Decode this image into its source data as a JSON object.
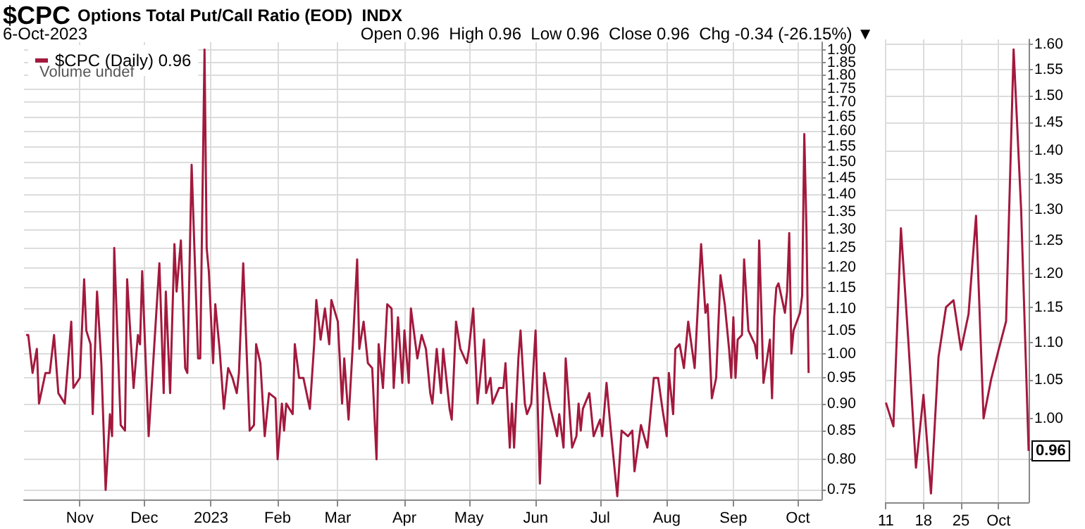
{
  "chart_data": [
    {
      "type": "line",
      "title": "$CPC",
      "subtitle": "Options Total Put/Call Ratio (EOD)  INDX",
      "annotations": [
        "6-Oct-2023",
        "Open 0.96  High 0.96  Low 0.96  Close 0.96  Chg -0.34 (-26.15%) ▼",
        "Volume undef"
      ],
      "x": [
        "2022-10-07",
        "2022-10-08",
        "2022-10-10",
        "2022-10-12",
        "2022-10-13",
        "2022-10-16",
        "2022-10-18",
        "2022-10-20",
        "2022-10-22",
        "2022-10-25",
        "2022-10-28",
        "2022-10-29",
        "2022-11-01",
        "2022-11-03",
        "2022-11-04",
        "2022-11-06",
        "2022-11-07",
        "2022-11-09",
        "2022-11-11",
        "2022-11-13",
        "2022-11-15",
        "2022-11-16",
        "2022-11-17",
        "2022-11-20",
        "2022-11-22",
        "2022-11-23",
        "2022-11-26",
        "2022-11-28",
        "2022-11-29",
        "2022-11-30",
        "2022-12-03",
        "2022-12-08",
        "2022-12-10",
        "2022-12-11",
        "2022-12-13",
        "2022-12-15",
        "2022-12-16",
        "2022-12-18",
        "2022-12-20",
        "2022-12-21",
        "2022-12-23",
        "2022-12-26",
        "2022-12-27",
        "2022-12-29",
        "2022-12-30",
        "2022-12-31",
        "2023-01-02",
        "2023-01-03",
        "2023-01-05",
        "2023-01-07",
        "2023-01-09",
        "2023-01-11",
        "2023-01-13",
        "2023-01-14",
        "2023-01-16",
        "2023-01-19",
        "2023-01-21",
        "2023-01-22",
        "2023-01-24",
        "2023-01-26",
        "2023-01-28",
        "2023-01-31",
        "2023-02-01",
        "2023-02-03",
        "2023-02-04",
        "2023-02-05",
        "2023-02-08",
        "2023-02-09",
        "2023-02-11",
        "2023-02-13",
        "2023-02-16",
        "2023-02-18",
        "2023-02-19",
        "2023-02-21",
        "2023-02-23",
        "2023-02-25",
        "2023-02-26",
        "2023-03-01",
        "2023-03-03",
        "2023-03-04",
        "2023-03-06",
        "2023-03-08",
        "2023-03-10",
        "2023-03-11",
        "2023-03-13",
        "2023-03-15",
        "2023-03-17",
        "2023-03-19",
        "2023-03-20",
        "2023-03-22",
        "2023-03-24",
        "2023-03-26",
        "2023-03-27",
        "2023-03-29",
        "2023-03-31",
        "2023-04-01",
        "2023-04-03",
        "2023-04-04",
        "2023-04-07",
        "2023-04-09",
        "2023-04-11",
        "2023-04-13",
        "2023-04-14",
        "2023-04-16",
        "2023-04-18",
        "2023-04-19",
        "2023-04-22",
        "2023-04-23",
        "2023-04-25",
        "2023-04-27",
        "2023-04-30",
        "2023-05-01",
        "2023-05-03",
        "2023-05-05",
        "2023-05-08",
        "2023-05-09",
        "2023-05-11",
        "2023-05-12",
        "2023-05-15",
        "2023-05-17",
        "2023-05-18",
        "2023-05-20",
        "2023-05-21",
        "2023-05-22",
        "2023-05-24",
        "2023-05-25",
        "2023-05-27",
        "2023-05-28",
        "2023-05-30",
        "2023-06-01",
        "2023-06-03",
        "2023-06-05",
        "2023-06-08",
        "2023-06-11",
        "2023-06-12",
        "2023-06-14",
        "2023-06-15",
        "2023-06-18",
        "2023-06-20",
        "2023-06-21",
        "2023-06-22",
        "2023-06-23",
        "2023-06-26",
        "2023-06-28",
        "2023-06-29",
        "2023-07-01",
        "2023-07-02",
        "2023-07-04",
        "2023-07-06",
        "2023-07-09",
        "2023-07-11",
        "2023-07-14",
        "2023-07-16",
        "2023-07-17",
        "2023-07-20",
        "2023-07-23",
        "2023-07-26",
        "2023-07-28",
        "2023-07-30",
        "2023-08-01",
        "2023-08-02",
        "2023-08-04",
        "2023-08-05",
        "2023-08-07",
        "2023-08-09",
        "2023-08-11",
        "2023-08-14",
        "2023-08-17",
        "2023-08-19",
        "2023-08-20",
        "2023-08-22",
        "2023-08-24",
        "2023-08-26",
        "2023-08-28",
        "2023-08-30",
        "2023-08-31",
        "2023-09-01",
        "2023-09-02",
        "2023-09-03",
        "2023-09-05",
        "2023-09-06",
        "2023-09-08",
        "2023-09-11",
        "2023-09-12",
        "2023-09-13",
        "2023-09-14",
        "2023-09-15",
        "2023-09-18",
        "2023-09-19",
        "2023-09-20",
        "2023-09-21",
        "2023-09-22",
        "2023-09-25",
        "2023-09-26",
        "2023-09-27",
        "2023-09-28",
        "2023-09-29",
        "2023-10-02",
        "2023-10-03",
        "2023-10-04",
        "2023-10-05",
        "2023-10-06"
      ],
      "series": [
        {
          "name": "$CPC (Daily) 0.96",
          "color": "#a3193d",
          "values": [
            1.04,
            1.04,
            0.96,
            1.01,
            0.9,
            0.96,
            0.96,
            1.04,
            0.92,
            0.9,
            1.07,
            0.93,
            0.95,
            1.17,
            1.05,
            1.02,
            0.88,
            1.14,
            0.98,
            0.75,
            0.88,
            0.84,
            1.25,
            0.86,
            0.85,
            1.17,
            0.93,
            1.04,
            1.02,
            1.19,
            0.84,
            1.21,
            0.92,
            1.14,
            0.92,
            1.26,
            1.14,
            1.27,
            0.97,
            0.96,
            1.49,
            0.99,
            0.99,
            1.9,
            1.25,
            1.19,
            0.98,
            1.11,
            1.01,
            0.89,
            0.97,
            0.95,
            0.92,
            0.96,
            1.21,
            0.85,
            0.86,
            1.02,
            0.98,
            0.84,
            0.92,
            0.91,
            0.8,
            0.9,
            0.85,
            0.9,
            0.88,
            1.02,
            0.95,
            0.95,
            0.89,
            1.02,
            1.12,
            1.03,
            1.1,
            1.02,
            1.12,
            1.07,
            0.9,
            0.99,
            0.87,
            1.02,
            1.22,
            1.01,
            1.07,
            0.98,
            0.97,
            0.8,
            1.02,
            0.93,
            1.11,
            1.1,
            0.93,
            1.08,
            0.94,
            1.05,
            0.94,
            1.1,
            0.99,
            1.04,
            1.01,
            0.92,
            0.9,
            1.01,
            0.92,
            1.01,
            0.89,
            0.87,
            1.07,
            1.01,
            0.98,
            1.01,
            1.1,
            0.9,
            1.03,
            0.92,
            0.95,
            0.9,
            0.93,
            0.93,
            0.98,
            0.82,
            0.9,
            0.82,
            0.99,
            1.05,
            0.9,
            0.88,
            0.9,
            1.05,
            0.76,
            0.96,
            0.89,
            0.84,
            0.88,
            0.82,
            0.99,
            0.82,
            0.84,
            0.9,
            0.85,
            0.89,
            0.92,
            0.84,
            0.85,
            0.87,
            0.84,
            0.94,
            0.85,
            0.74,
            0.85,
            0.84,
            0.85,
            0.78,
            0.86,
            0.82,
            0.95,
            0.95,
            0.89,
            0.84,
            0.96,
            0.88,
            1.01,
            1.02,
            0.97,
            1.07,
            0.97,
            1.26,
            1.09,
            1.11,
            0.91,
            0.95,
            1.18,
            1.11,
            1.01,
            0.95,
            1.08,
            0.95,
            1.03,
            1.04,
            1.22,
            1.05,
            1.02,
            0.99,
            1.27,
            1.1,
            0.94,
            1.03,
            0.91,
            1.08,
            1.15,
            1.16,
            1.09,
            1.14,
            1.29,
            1.0,
            1.05,
            1.09,
            1.13,
            1.59,
            1.3,
            0.96
          ]
        }
      ],
      "xlim": [
        "2022-10-06",
        "2023-10-12"
      ],
      "xticks": [
        {
          "value": "2022-11-01",
          "label": "Nov"
        },
        {
          "value": "2022-12-01",
          "label": "Dec"
        },
        {
          "value": "2023-01-01",
          "label": "2023"
        },
        {
          "value": "2023-02-01",
          "label": "Feb"
        },
        {
          "value": "2023-03-01",
          "label": "Mar"
        },
        {
          "value": "2023-04-01",
          "label": "Apr"
        },
        {
          "value": "2023-05-01",
          "label": "May"
        },
        {
          "value": "2023-06-01",
          "label": "Jun"
        },
        {
          "value": "2023-07-01",
          "label": "Jul"
        },
        {
          "value": "2023-08-01",
          "label": "Aug"
        },
        {
          "value": "2023-09-01",
          "label": "Sep"
        },
        {
          "value": "2023-10-01",
          "label": "Oct"
        }
      ],
      "ylim": [
        0.735,
        1.93
      ],
      "yticks": [
        {
          "value": 0.75,
          "label": "0.75"
        },
        {
          "value": 0.8,
          "label": "0.80"
        },
        {
          "value": 0.85,
          "label": "0.85"
        },
        {
          "value": 0.9,
          "label": "0.90"
        },
        {
          "value": 0.95,
          "label": "0.95"
        },
        {
          "value": 1.0,
          "label": "1.00"
        },
        {
          "value": 1.05,
          "label": "1.05"
        },
        {
          "value": 1.1,
          "label": "1.10"
        },
        {
          "value": 1.15,
          "label": "1.15"
        },
        {
          "value": 1.2,
          "label": "1.20"
        },
        {
          "value": 1.25,
          "label": "1.25"
        },
        {
          "value": 1.3,
          "label": "1.30"
        },
        {
          "value": 1.35,
          "label": "1.35"
        },
        {
          "value": 1.4,
          "label": "1.40"
        },
        {
          "value": 1.45,
          "label": "1.45"
        },
        {
          "value": 1.5,
          "label": "1.50"
        },
        {
          "value": 1.55,
          "label": "1.55"
        },
        {
          "value": 1.6,
          "label": "1.60"
        },
        {
          "value": 1.65,
          "label": "1.65"
        },
        {
          "value": 1.7,
          "label": "1.70"
        },
        {
          "value": 1.75,
          "label": "1.75"
        },
        {
          "value": 1.8,
          "label": "1.80"
        },
        {
          "value": 1.85,
          "label": "1.85"
        },
        {
          "value": 1.9,
          "label": "1.90"
        }
      ],
      "log": "y",
      "grid": true,
      "legend": "top left"
    },
    {
      "type": "line",
      "categories": [
        "11",
        null,
        null,
        null,
        null,
        "18",
        null,
        null,
        null,
        null,
        "25",
        null,
        null,
        null,
        null,
        "Oct",
        null,
        null,
        null,
        null
      ],
      "series": [
        {
          "color": "#a3193d",
          "values": [
            1.02,
            0.99,
            1.27,
            1.1,
            0.94,
            1.03,
            0.91,
            1.08,
            1.15,
            1.16,
            1.09,
            1.14,
            1.29,
            1.0,
            1.05,
            1.09,
            1.13,
            1.59,
            1.3,
            0.96
          ],
          "value_labels": [
            null,
            null,
            null,
            null,
            null,
            null,
            null,
            null,
            null,
            null,
            null,
            null,
            null,
            null,
            null,
            null,
            null,
            null,
            null,
            "0.96"
          ]
        }
      ],
      "ylim": [
        0.9,
        1.61
      ],
      "yticks": [
        {
          "value": 0.95,
          "label": null
        },
        {
          "value": 1.0,
          "label": "1.00"
        },
        {
          "value": 1.05,
          "label": "1.05"
        },
        {
          "value": 1.1,
          "label": "1.10"
        },
        {
          "value": 1.15,
          "label": "1.15"
        },
        {
          "value": 1.2,
          "label": "1.20"
        },
        {
          "value": 1.25,
          "label": "1.25"
        },
        {
          "value": 1.3,
          "label": "1.30"
        },
        {
          "value": 1.35,
          "label": "1.35"
        },
        {
          "value": 1.4,
          "label": "1.40"
        },
        {
          "value": 1.45,
          "label": "1.45"
        },
        {
          "value": 1.5,
          "label": "1.50"
        },
        {
          "value": 1.55,
          "label": "1.55"
        },
        {
          "value": 1.6,
          "label": "1.60"
        }
      ],
      "log": "y",
      "grid": true
    }
  ]
}
